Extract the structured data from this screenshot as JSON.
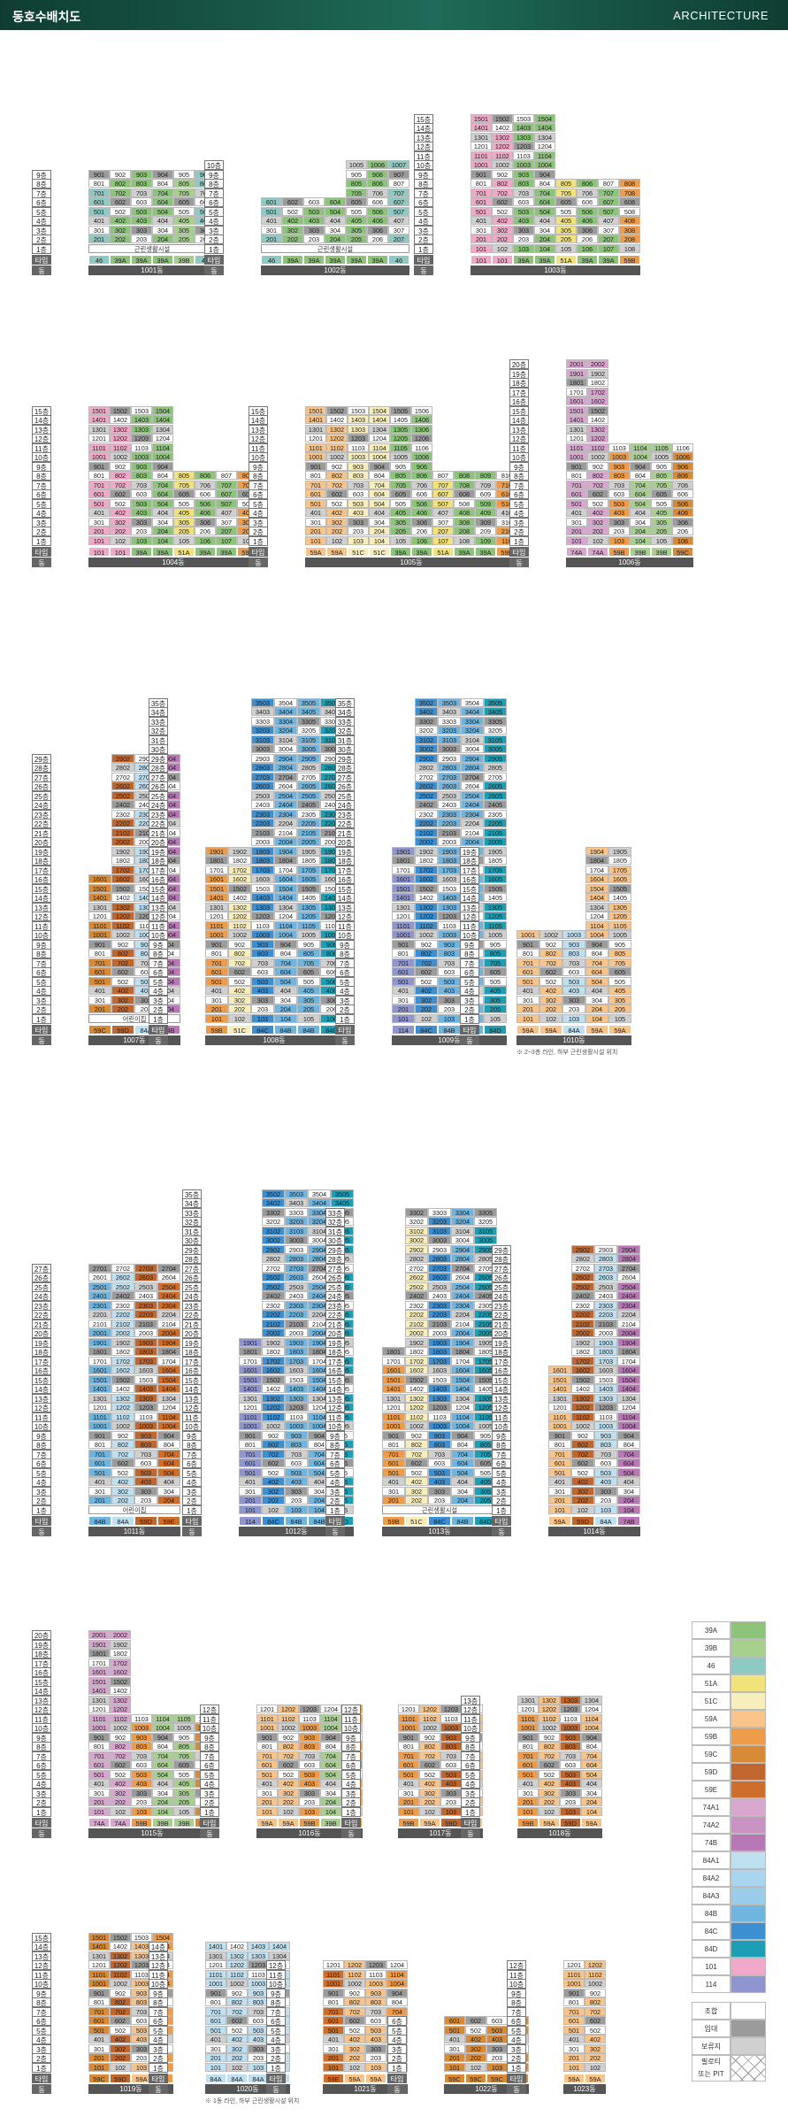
{
  "header": {
    "title": "동호수배치도",
    "right": "ARCHITECTURE"
  },
  "labels": {
    "type": "타입",
    "dong": "동",
    "c1": "근린생활시설",
    "c2": "어린이집",
    "c3": "근린생활시설"
  },
  "notes": {
    "n1": "※ 2~3층 라인, 하부 근린생활시설 위치",
    "n2": "※ 1동 라인, 하부 근린생활시설 위치"
  },
  "blocks": {
    "b1001": {
      "name": "1001동",
      "floors": [
        "1층",
        "2층",
        "3층",
        "4층",
        "5층",
        "6층",
        "7층",
        "8층",
        "9층"
      ],
      "types": [
        "46",
        "39A",
        "39A",
        "39A",
        "39B",
        "46"
      ]
    },
    "b1002": {
      "name": "1002동",
      "types": [
        "46",
        "39A",
        "39A",
        "39A",
        "39A",
        "39A",
        "46"
      ]
    },
    "b1003": {
      "name": "1003동",
      "types": [
        "101",
        "101",
        "39A",
        "39A",
        "51A",
        "39A",
        "39A",
        "59B"
      ]
    },
    "b1004": {
      "name": "1004동",
      "types": [
        "101",
        "101",
        "39A",
        "39A",
        "51A",
        "39A",
        "39A",
        "59B"
      ]
    },
    "b1005": {
      "name": "1005동",
      "types": [
        "59A",
        "59A",
        "51C",
        "51C",
        "39A",
        "39A",
        "51A",
        "39A",
        "39A",
        "59B"
      ]
    },
    "b1006": {
      "name": "1006동",
      "types": [
        "74A",
        "74A",
        "59B",
        "39B",
        "39B",
        "59C"
      ]
    },
    "b1007": {
      "name": "1007동",
      "types": [
        "59C",
        "59D",
        "84A",
        "74B"
      ]
    },
    "b1008": {
      "name": "1008동",
      "types": [
        "59B",
        "51C",
        "84C",
        "84B",
        "84B",
        "84D"
      ]
    },
    "b1009": {
      "name": "1009동",
      "types": [
        "114",
        "84C",
        "84B",
        "84B",
        "84D"
      ]
    },
    "b1010": {
      "name": "1010동",
      "types": [
        "59A",
        "59A",
        "84A",
        "59A",
        "59A"
      ]
    },
    "b1011": {
      "name": "1011동",
      "types": [
        "84B",
        "84A",
        "59D",
        "59E"
      ]
    },
    "b1012": {
      "name": "1012동",
      "types": [
        "114",
        "84C",
        "84B",
        "84B",
        "84D"
      ]
    },
    "b1013": {
      "name": "1013동",
      "types": [
        "59B",
        "51C",
        "84C",
        "84B",
        "84D"
      ]
    },
    "b1014": {
      "name": "1014동",
      "types": [
        "59A",
        "59D",
        "84A",
        "74B"
      ]
    },
    "b1015": {
      "name": "1015동",
      "types": [
        "74A",
        "74A",
        "59B",
        "39B",
        "39B",
        "59C"
      ]
    },
    "b1016": {
      "name": "1016동",
      "types": [
        "59A",
        "59A",
        "59B",
        "39B",
        "59B"
      ]
    },
    "b1017": {
      "name": "1017동",
      "types": [
        "59B",
        "59A",
        "59D",
        "59A"
      ]
    },
    "b1018": {
      "name": "1018동",
      "types": [
        "59B",
        "59A",
        "59D",
        "59A"
      ]
    },
    "b1019": {
      "name": "1019동",
      "types": [
        "59C",
        "59D",
        "59A",
        "59B"
      ]
    },
    "b1020": {
      "name": "1020동",
      "types": [
        "84A",
        "84A",
        "84A",
        "84A"
      ]
    },
    "b1021": {
      "name": "1021동",
      "types": [
        "59E",
        "59A",
        "59A",
        "59B"
      ]
    },
    "b1022": {
      "name": "1022동",
      "types": [
        "59C",
        "59C",
        "59C",
        "59C"
      ]
    },
    "b1023": {
      "name": "1023동",
      "types": [
        "59A",
        "59A"
      ]
    }
  },
  "legend": {
    "types": [
      {
        "label": "39A",
        "color": "#8cc47a"
      },
      {
        "label": "39B",
        "color": "#a7d08f"
      },
      {
        "label": "46",
        "color": "#8ec9c4"
      },
      {
        "label": "51A",
        "color": "#f2e27c"
      },
      {
        "label": "51C",
        "color": "#f7eebb"
      },
      {
        "label": "59A",
        "color": "#f8c48a"
      },
      {
        "label": "59B",
        "color": "#ee9c4a"
      },
      {
        "label": "59C",
        "color": "#d98a36"
      },
      {
        "label": "59D",
        "color": "#c0662f"
      },
      {
        "label": "59E",
        "color": "#cf6d2b"
      },
      {
        "label": "74A1",
        "color": "#d8a6cf"
      },
      {
        "label": "74A2",
        "color": "#c994c3"
      },
      {
        "label": "74B",
        "color": "#b878b6"
      },
      {
        "label": "84A1",
        "color": "#bfe0f1"
      },
      {
        "label": "84A2",
        "color": "#a9d5ee"
      },
      {
        "label": "84A3",
        "color": "#9bcdea"
      },
      {
        "label": "84B",
        "color": "#6fb5df"
      },
      {
        "label": "84C",
        "color": "#3c8fd0"
      },
      {
        "label": "84D",
        "color": "#1c9fb5"
      },
      {
        "label": "101",
        "color": "#f2a8c8"
      },
      {
        "label": "114",
        "color": "#8f95cf"
      }
    ],
    "others": [
      {
        "label": "조합",
        "kind": "white"
      },
      {
        "label": "임대",
        "kind": "gray"
      },
      {
        "label": "보류지",
        "kind": "lgray"
      },
      {
        "label": "필로티\n또는 PIT",
        "kind": "x"
      }
    ]
  }
}
